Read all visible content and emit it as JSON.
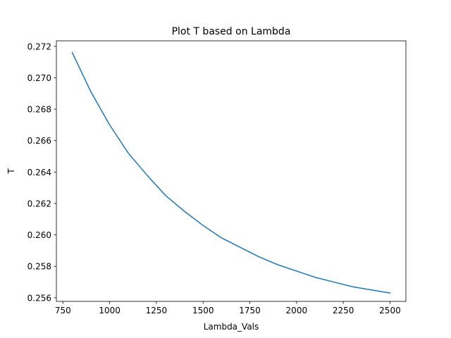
{
  "chart_data": {
    "type": "line",
    "title": "Plot T based on Lambda",
    "xlabel": "Lambda_Vals",
    "ylabel": "T",
    "xlim": [
      715,
      2585
    ],
    "ylim": [
      0.25577,
      0.27235
    ],
    "xticks": [
      750,
      1000,
      1250,
      1500,
      1750,
      2000,
      2250,
      2500
    ],
    "xtick_labels": [
      "750",
      "1000",
      "1250",
      "1500",
      "1750",
      "2000",
      "2250",
      "2500"
    ],
    "yticks": [
      0.256,
      0.258,
      0.26,
      0.262,
      0.264,
      0.266,
      0.268,
      0.27,
      0.272
    ],
    "ytick_labels": [
      "0.256",
      "0.258",
      "0.260",
      "0.262",
      "0.264",
      "0.266",
      "0.268",
      "0.270",
      "0.272"
    ],
    "grid": false,
    "series": [
      {
        "color": "#1f77b4",
        "x": [
          800,
          900,
          1000,
          1100,
          1200,
          1300,
          1400,
          1500,
          1600,
          1700,
          1800,
          1900,
          2000,
          2100,
          2200,
          2300,
          2400,
          2500
        ],
        "y": [
          0.2716,
          0.2691,
          0.267,
          0.2652,
          0.2638,
          0.2625,
          0.2615,
          0.2606,
          0.2598,
          0.2592,
          0.2586,
          0.2581,
          0.2577,
          0.2573,
          0.257,
          0.2567,
          0.2565,
          0.2563
        ]
      }
    ]
  }
}
